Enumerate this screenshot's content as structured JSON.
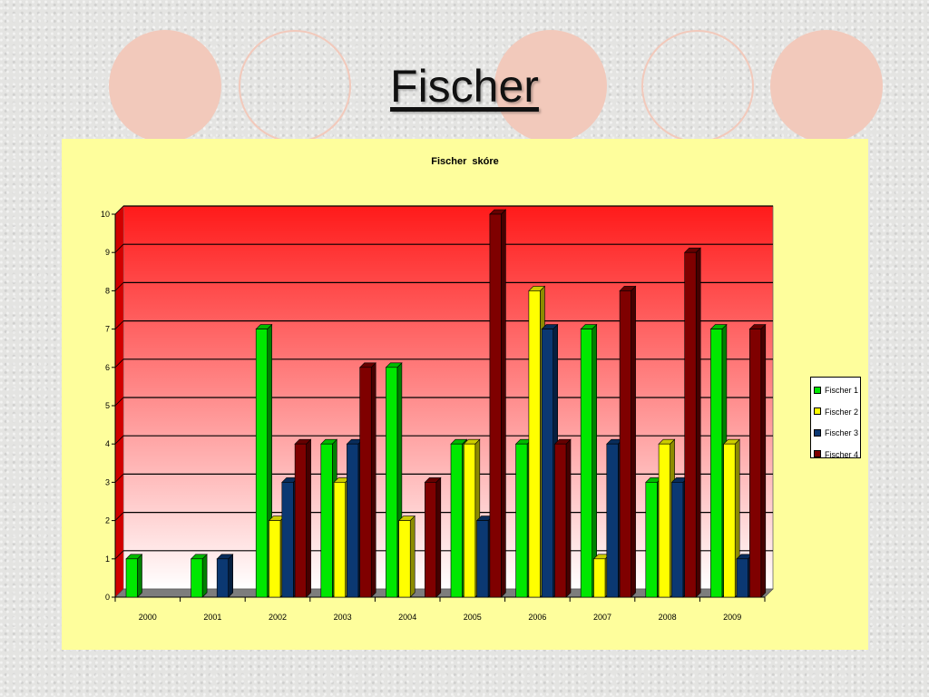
{
  "slide": {
    "title": "Fischer"
  },
  "chart_data": {
    "type": "bar",
    "title": "Fischer  skóre",
    "xlabel": "",
    "ylabel": "",
    "ylim": [
      0,
      10
    ],
    "yticks": [
      0,
      1,
      2,
      3,
      4,
      5,
      6,
      7,
      8,
      9,
      10
    ],
    "categories": [
      "2000",
      "2001",
      "2002",
      "2003",
      "2004",
      "2005",
      "2006",
      "2007",
      "2008",
      "2009"
    ],
    "series": [
      {
        "name": "Fischer  1",
        "color": "#00e800",
        "values": [
          1,
          1,
          7,
          4,
          6,
          4,
          4,
          7,
          3,
          7
        ]
      },
      {
        "name": "Fischer  2",
        "color": "#ffff00",
        "values": [
          0,
          0,
          2,
          3,
          2,
          4,
          8,
          1,
          4,
          4
        ]
      },
      {
        "name": "Fischer  3",
        "color": "#0b3872",
        "values": [
          0,
          1,
          3,
          4,
          0,
          2,
          7,
          4,
          3,
          1
        ]
      },
      {
        "name": "Fischer  4",
        "color": "#7f0000",
        "values": [
          0,
          0,
          4,
          6,
          3,
          10,
          4,
          8,
          9,
          7
        ]
      }
    ],
    "grid": true,
    "plot_background": "gradient red to white",
    "legend_position": "right"
  }
}
